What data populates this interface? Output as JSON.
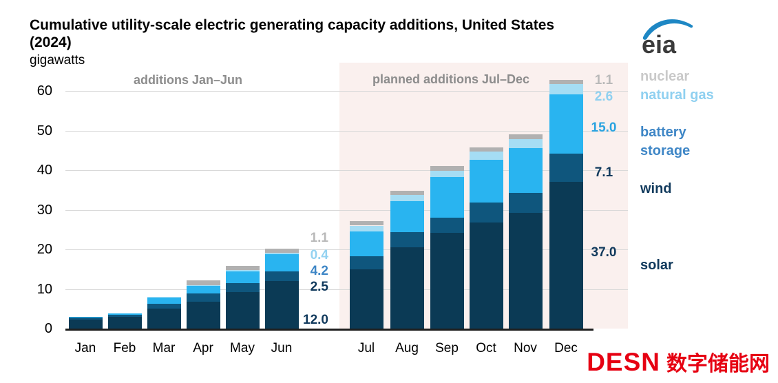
{
  "header": {
    "title_line1": "Cumulative utility-scale electric generating capacity additions, United States",
    "title_line2": "(2024)",
    "units": "gigawatts"
  },
  "region_labels": {
    "first_half": "additions Jan–Jun",
    "second_half": "planned additions Jul–Dec"
  },
  "logos": {
    "eia_text": "eia",
    "desn_text": "DESN",
    "desn_cn_text": "数字储能网"
  },
  "colors": {
    "solar_bar": "#0b3a55",
    "wind_bar": "#0f567d",
    "battery_bar": "#29b4f0",
    "gas_bar": "#a5ddf4",
    "nuclear_bar": "#b1b1b1",
    "highlight_bg": "#faf0ee",
    "annotation_gray": "#8c8c8c",
    "desn_red": "#e60012",
    "eia_blue": "#1e87c4"
  },
  "legend": [
    {
      "label": "nuclear",
      "color": "#c9c9c9"
    },
    {
      "label": "natural gas",
      "color": "#8fd0f0"
    },
    {
      "label": "battery storage",
      "color": "#3e86c6"
    },
    {
      "label": "wind",
      "color": "#10395c"
    },
    {
      "label": "solar",
      "color": "#10395c"
    }
  ],
  "chart_data": {
    "type": "bar",
    "stacked": true,
    "title": "Cumulative utility-scale electric generating capacity additions, United States (2024)",
    "ylabel": "gigawatts",
    "xlabel": "",
    "categories": [
      "Jan",
      "Feb",
      "Mar",
      "Apr",
      "May",
      "Jun",
      "Jul",
      "Aug",
      "Sep",
      "Oct",
      "Nov",
      "Dec"
    ],
    "series": [
      {
        "name": "solar",
        "color": "#0b3a55",
        "values": [
          2.3,
          2.9,
          5.1,
          6.8,
          9.2,
          12.0,
          15.0,
          20.5,
          24.2,
          26.8,
          29.2,
          37.0
        ]
      },
      {
        "name": "wind",
        "color": "#0f567d",
        "values": [
          0.5,
          0.6,
          1.1,
          2.0,
          2.2,
          2.5,
          3.3,
          3.8,
          3.8,
          5.0,
          5.0,
          7.1
        ]
      },
      {
        "name": "battery storage",
        "color": "#29b4f0",
        "values": [
          0.2,
          0.4,
          1.7,
          1.9,
          3.0,
          4.2,
          6.3,
          7.8,
          10.3,
          10.8,
          11.3,
          15.0
        ]
      },
      {
        "name": "natural gas",
        "color": "#a5ddf4",
        "values": [
          0,
          0,
          0.1,
          0.3,
          0.4,
          0.4,
          1.4,
          1.6,
          1.6,
          2.1,
          2.4,
          2.6
        ]
      },
      {
        "name": "nuclear",
        "color": "#b1b1b1",
        "values": [
          0,
          0,
          0,
          1.1,
          1.1,
          1.1,
          1.1,
          1.1,
          1.1,
          1.1,
          1.1,
          1.1
        ]
      }
    ],
    "y_ticks": [
      "0",
      "10",
      "20",
      "30",
      "40",
      "50",
      "60"
    ],
    "ylim": [
      0,
      65
    ],
    "grid": true,
    "legend_position": "right",
    "highlight_region": {
      "from": "Jul",
      "to": "Dec",
      "fill": "#faf0ee",
      "label": "planned additions Jul–Dec"
    },
    "annotated_values": {
      "jun": [
        {
          "text": "1.1",
          "series": "nuclear",
          "color": "#b9b9b9"
        },
        {
          "text": "0.4",
          "series": "natural gas",
          "color": "#93d2f1"
        },
        {
          "text": "4.2",
          "series": "battery storage",
          "color": "#3e86c6"
        },
        {
          "text": "2.5",
          "series": "wind",
          "color": "#10395c"
        },
        {
          "text": "12.0",
          "series": "solar",
          "color": "#10395c"
        }
      ],
      "dec": [
        {
          "text": "1.1",
          "series": "nuclear",
          "color": "#b9b9b9"
        },
        {
          "text": "2.6",
          "series": "natural gas",
          "color": "#8fd0f0"
        },
        {
          "text": "15.0",
          "series": "battery storage",
          "color": "#2aa3e0"
        },
        {
          "text": "7.1",
          "series": "wind",
          "color": "#10395c"
        },
        {
          "text": "37.0",
          "series": "solar",
          "color": "#10395c"
        }
      ]
    }
  }
}
